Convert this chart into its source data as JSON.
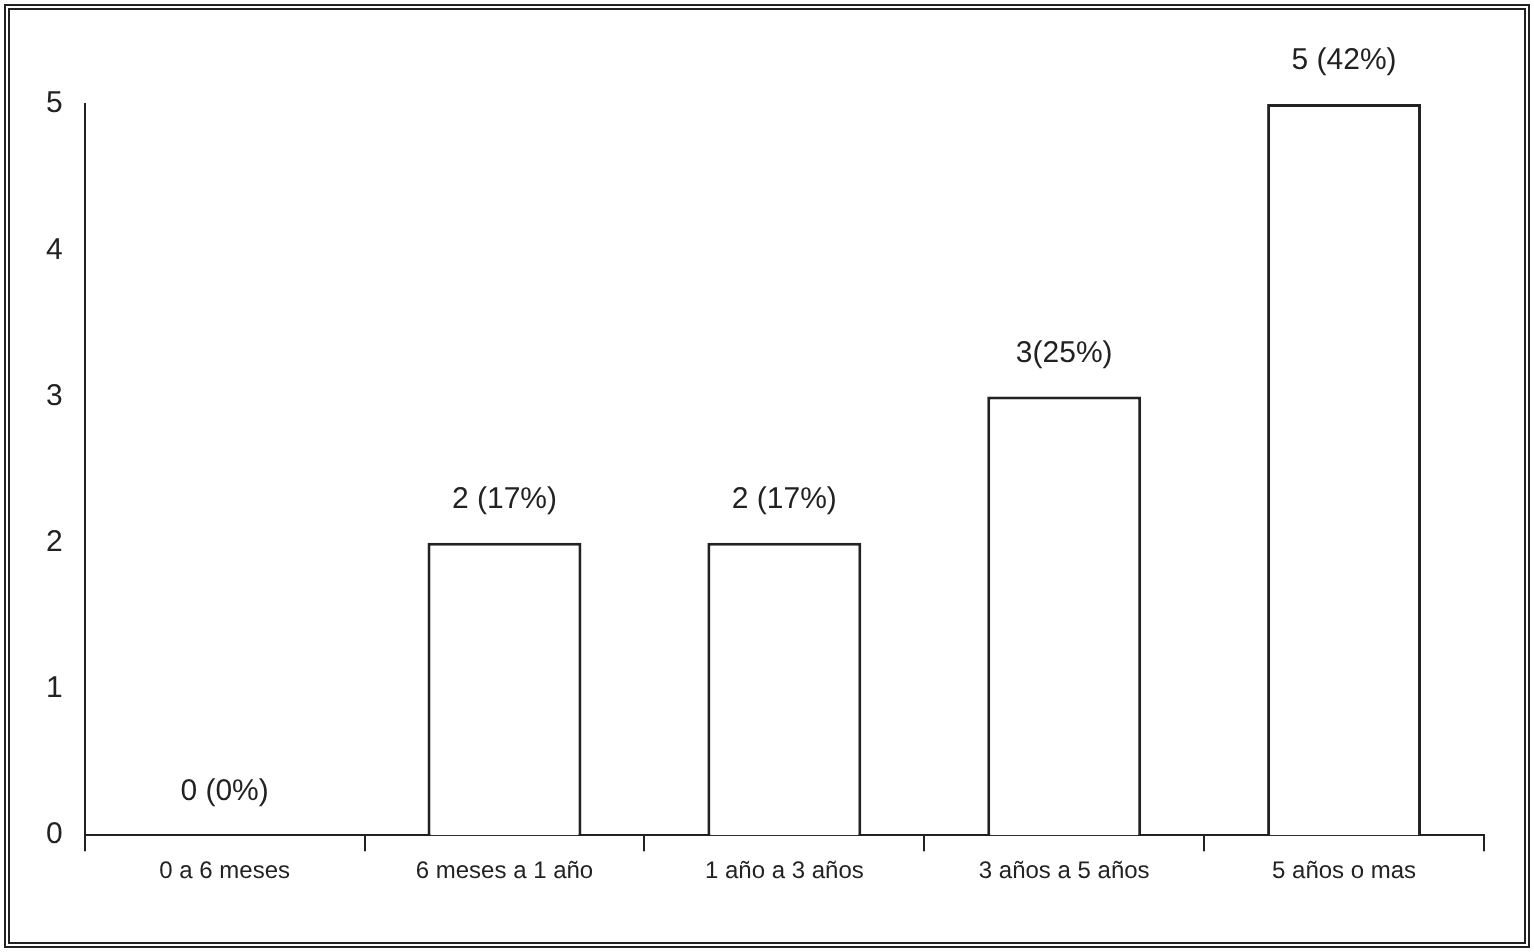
{
  "chart_data": {
    "type": "bar",
    "categories": [
      "0 a 6 meses",
      "6 meses a 1 año",
      "1 año a 3 años",
      "3 años a 5 años",
      "5 años o mas"
    ],
    "values": [
      0,
      2,
      2,
      3,
      5
    ],
    "value_labels": [
      "0 (0%)",
      "2 (17%)",
      "2 (17%)",
      "3(25%)",
      "5 (42%)"
    ],
    "color": "#ffffff",
    "ylim": [
      0,
      5
    ],
    "yticks": [
      0,
      1,
      2,
      3,
      4,
      5
    ],
    "grid": false,
    "legend": false
  }
}
